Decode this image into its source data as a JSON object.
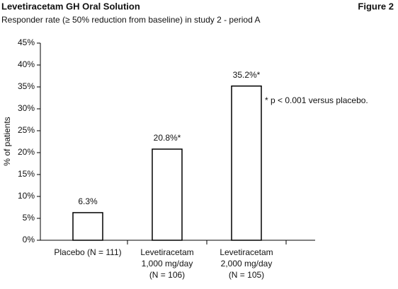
{
  "chart_data": {
    "type": "bar",
    "title": "Levetiracetam GH Oral Solution",
    "figure_label": "Figure 2",
    "subtitle": "Responder rate (≥ 50% reduction from baseline) in study 2 - period A",
    "y_label": "% of patients",
    "annotation": "* p < 0.001 versus placebo.",
    "categories": [
      [
        "Placebo (N = 111)"
      ],
      [
        "Levetiracetam",
        "1,000 mg/day",
        "(N = 106)"
      ],
      [
        "Levetiracetam",
        "2,000 mg/day",
        "(N = 105)"
      ]
    ],
    "values": [
      6.3,
      20.8,
      35.2
    ],
    "value_labels": [
      "6.3%",
      "20.8%*",
      "35.2%*"
    ],
    "color": "#ffffff",
    "ylim": [
      0,
      45
    ],
    "yticks": [
      {
        "value": 0,
        "label": "0%"
      },
      {
        "value": 5,
        "label": "5%"
      },
      {
        "value": 10,
        "label": "10%"
      },
      {
        "value": 15,
        "label": "15%"
      },
      {
        "value": 20,
        "label": "20%"
      },
      {
        "value": 25,
        "label": "25%"
      },
      {
        "value": 30,
        "label": "30%"
      },
      {
        "value": 35,
        "label": "35%"
      },
      {
        "value": 40,
        "label": "40%"
      },
      {
        "value": 45,
        "label": "45%"
      }
    ],
    "grid": false
  }
}
